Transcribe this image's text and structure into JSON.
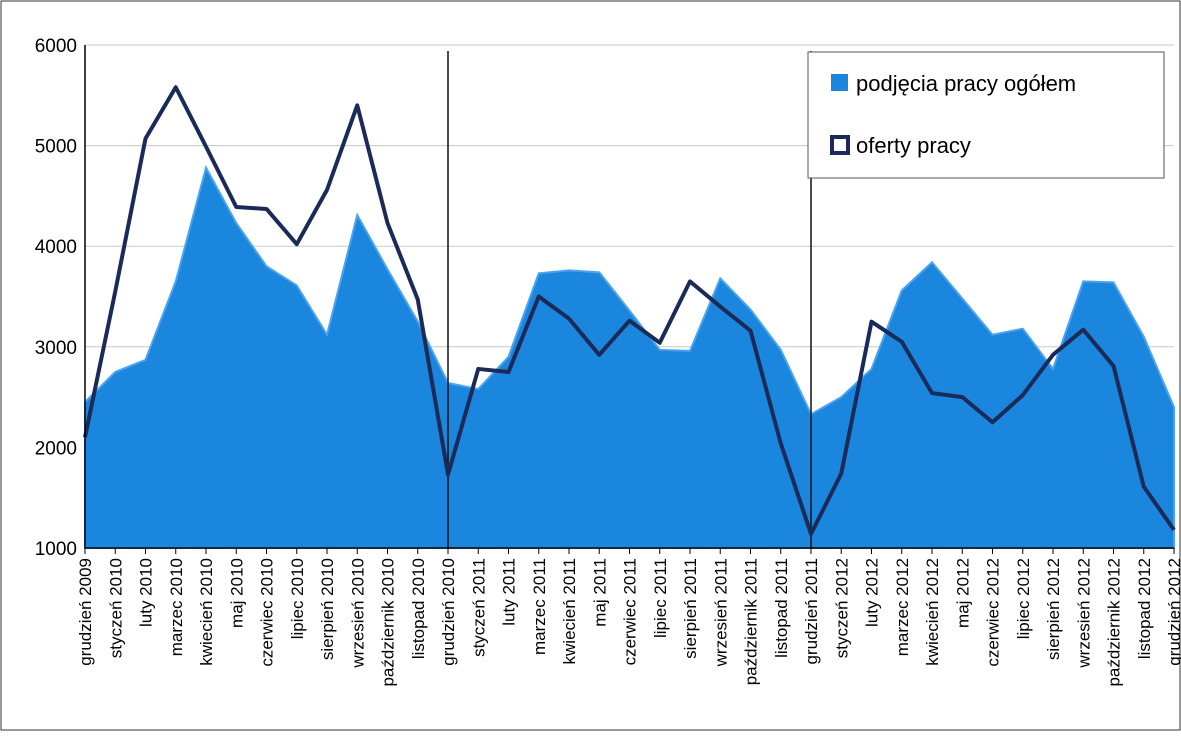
{
  "chart_data": {
    "type": "area",
    "title": "",
    "xlabel": "",
    "ylabel": "",
    "ylim": [
      1000,
      6000
    ],
    "yticks": [
      "1000",
      "2000",
      "3000",
      "4000",
      "5000",
      "6000"
    ],
    "grid": true,
    "legend_position": "top-right",
    "categories": [
      "grudzień 2009",
      "styczeń 2010",
      "luty 2010",
      "marzec 2010",
      "kwiecień 2010",
      "maj 2010",
      "czerwiec 2010",
      "lipiec 2010",
      "sierpień 2010",
      "wrzesień 2010",
      "październik 2010",
      "listopad 2010",
      "grudzień 2010",
      "styczeń 2011",
      "luty 2011",
      "marzec 2011",
      "kwiecień 2011",
      "maj 2011",
      "czerwiec 2011",
      "lipiec 2011",
      "sierpień 2011",
      "wrzesień 2011",
      "październik 2011",
      "listopad 2011",
      "grudzień 2011",
      "styczeń 2012",
      "luty 2012",
      "marzec 2012",
      "kwiecień 2012",
      "maj 2012",
      "czerwiec 2012",
      "lipiec 2012",
      "sierpień 2012",
      "wrzesień 2012",
      "październik 2012",
      "listopad 2012",
      "grudzień 2012"
    ],
    "year_separators": [
      "grudzień 2010",
      "grudzień 2011"
    ],
    "series": [
      {
        "name": "podjęcia pracy ogółem",
        "kind": "area",
        "color": "#1b86dd",
        "values": [
          2450,
          2750,
          2870,
          3650,
          4780,
          4230,
          3800,
          3610,
          3120,
          4310,
          3770,
          3250,
          2640,
          2580,
          2900,
          3730,
          3760,
          3740,
          3360,
          2970,
          2960,
          3680,
          3370,
          2970,
          2330,
          2500,
          2780,
          3560,
          3840,
          3480,
          3120,
          3180,
          2780,
          3650,
          3640,
          3100,
          2400
        ]
      },
      {
        "name": "oferty pracy",
        "kind": "line",
        "color": "#1a2b5a",
        "values": [
          2100,
          3550,
          5070,
          5580,
          4990,
          4390,
          4370,
          4020,
          4560,
          5400,
          4230,
          3470,
          1730,
          2780,
          2750,
          3500,
          3280,
          2920,
          3260,
          3040,
          3650,
          3400,
          3160,
          2040,
          1140,
          1740,
          3250,
          3050,
          2540,
          2500,
          2250,
          2520,
          2920,
          3170,
          2810,
          1610,
          1180
        ]
      }
    ]
  }
}
